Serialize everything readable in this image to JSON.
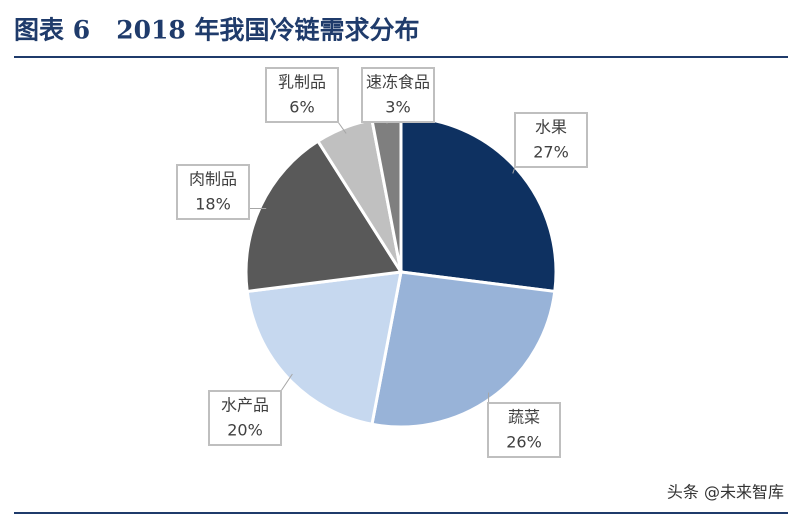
{
  "chart_data": {
    "type": "pie",
    "title": "图表 6   2018 年我国冷链需求分布",
    "categories": [
      "水果",
      "蔬菜",
      "水产品",
      "肉制品",
      "乳制品",
      "速冻食品"
    ],
    "values": [
      27,
      26,
      20,
      18,
      6,
      3
    ],
    "value_labels": [
      "27%",
      "26%",
      "20%",
      "18%",
      "6%",
      "3%"
    ],
    "colors": [
      "#0e3161",
      "#98b3d8",
      "#c6d8ef",
      "#595959",
      "#c0c0c0",
      "#7f7f7f"
    ],
    "watermark": "头条 @未来智库"
  }
}
